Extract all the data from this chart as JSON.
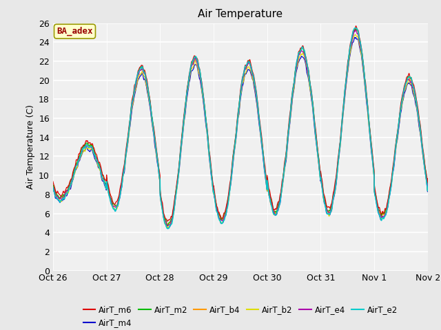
{
  "title": "Air Temperature",
  "ylabel": "Air Temperature (C)",
  "ylim": [
    0,
    26
  ],
  "yticks": [
    0,
    2,
    4,
    6,
    8,
    10,
    12,
    14,
    16,
    18,
    20,
    22,
    24,
    26
  ],
  "bg_color": "#e8e8e8",
  "plot_bg_color": "#f0f0f0",
  "series_colors": {
    "AirT_m6": "#dd0000",
    "AirT_m4": "#0000cc",
    "AirT_m2": "#00bb00",
    "AirT_b4": "#ff9900",
    "AirT_b2": "#dddd00",
    "AirT_e4": "#aa00aa",
    "AirT_e2": "#00cccc"
  },
  "legend_label": "BA_adex",
  "legend_fg": "#990000",
  "legend_bg": "#ffffcc",
  "xtick_labels": [
    "Oct 26",
    "Oct 27",
    "Oct 28",
    "Oct 29",
    "Oct 30",
    "Oct 31",
    "Nov 1",
    "Nov 2"
  ]
}
